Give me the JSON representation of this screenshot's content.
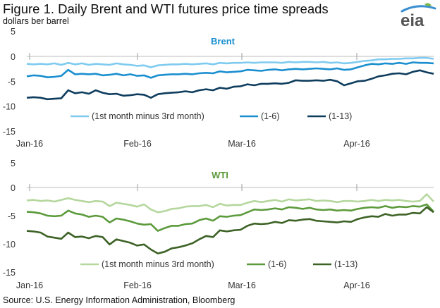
{
  "header": {
    "title": "Figure 1. Daily Brent and WTI futures price time spreads",
    "subtitle": "dollars ber barrel",
    "logo_text": "eia"
  },
  "footer": {
    "source": "Source: U.S. Energy Information Administration, Bloomberg"
  },
  "colors": {
    "brent_light": "#7fcbf0",
    "brent_mid": "#1a8fcf",
    "brent_dark": "#0f3d5e",
    "wti_light": "#b5d79e",
    "wti_mid": "#5c9a3c",
    "wti_dark": "#3d6226",
    "brent_title": "#1a8fcf",
    "wti_title": "#5c9a3c",
    "logo_swoosh": "#3a8fd0",
    "logo_leaf": "#7ab648"
  },
  "chart_data": [
    {
      "type": "line",
      "title": "Brent",
      "ylim": [
        -15,
        5
      ],
      "yticks": [
        -15,
        -10,
        -5,
        0,
        5
      ],
      "xticks": [
        "Jan-16",
        "Feb-16",
        "Mar-16",
        "Apr-16"
      ],
      "x": [
        0,
        2,
        4,
        6,
        8,
        10,
        12,
        14,
        16,
        18,
        20,
        22,
        24,
        26,
        28,
        30,
        32,
        34,
        36,
        38,
        40,
        42,
        44,
        46,
        48,
        50,
        52,
        54,
        56,
        58,
        60,
        62,
        64,
        66,
        68,
        70,
        72,
        74,
        76,
        78,
        80,
        82,
        84,
        86,
        88,
        90,
        92,
        94,
        96,
        98,
        100,
        102,
        104,
        106,
        108,
        110,
        112,
        114,
        116,
        118
      ],
      "grid": false,
      "legend": "bottom",
      "series": [
        {
          "name": "(1st month minus 3rd month)",
          "values": [
            -1.5,
            -1.6,
            -1.5,
            -1.6,
            -1.4,
            -1.7,
            -1.3,
            -1.6,
            -1.4,
            -1.7,
            -1.5,
            -1.6,
            -1.7,
            -1.4,
            -1.6,
            -1.7,
            -1.9,
            -1.8,
            -2.2,
            -1.8,
            -1.7,
            -1.6,
            -1.6,
            -1.5,
            -1.6,
            -1.5,
            -1.4,
            -1.6,
            -1.3,
            -1.4,
            -1.3,
            -1.3,
            -1.2,
            -1.3,
            -1.2,
            -1.2,
            -1.2,
            -1.3,
            -1.1,
            -1.2,
            -1.1,
            -1.1,
            -1.2,
            -1.1,
            -1.3,
            -1.2,
            -1.4,
            -1.3,
            -1.1,
            -0.9,
            -0.8,
            -0.6,
            -0.6,
            -0.5,
            -0.5,
            -0.4,
            -0.4,
            -0.3,
            -0.3,
            -0.5
          ]
        },
        {
          "name": "(1-6)",
          "values": [
            -4.0,
            -3.8,
            -3.9,
            -4.2,
            -4.1,
            -3.9,
            -2.7,
            -3.6,
            -3.5,
            -3.6,
            -3.5,
            -3.8,
            -3.7,
            -3.5,
            -3.8,
            -3.6,
            -3.9,
            -3.8,
            -4.3,
            -3.8,
            -3.7,
            -3.6,
            -3.6,
            -3.5,
            -3.6,
            -3.4,
            -3.3,
            -3.4,
            -3.0,
            -3.2,
            -3.1,
            -3.0,
            -2.7,
            -2.8,
            -2.9,
            -2.7,
            -2.6,
            -2.8,
            -2.6,
            -2.5,
            -2.6,
            -2.5,
            -2.4,
            -2.5,
            -2.6,
            -2.4,
            -2.7,
            -2.6,
            -2.2,
            -1.8,
            -1.5,
            -1.6,
            -1.4,
            -1.5,
            -1.3,
            -1.5,
            -1.2,
            -1.3,
            -1.3,
            -1.4
          ]
        },
        {
          "name": "(1-13)",
          "values": [
            -8.3,
            -8.2,
            -8.3,
            -8.6,
            -8.5,
            -8.4,
            -6.8,
            -7.4,
            -7.2,
            -7.5,
            -6.8,
            -7.3,
            -7.6,
            -7.5,
            -7.9,
            -7.8,
            -7.6,
            -7.7,
            -8.3,
            -7.6,
            -7.4,
            -7.3,
            -7.2,
            -7.0,
            -7.2,
            -6.8,
            -6.6,
            -6.8,
            -6.3,
            -6.5,
            -6.1,
            -6.0,
            -5.6,
            -5.8,
            -5.5,
            -5.5,
            -5.4,
            -5.5,
            -5.3,
            -4.8,
            -4.9,
            -4.9,
            -4.8,
            -4.9,
            -4.7,
            -5.0,
            -5.8,
            -5.4,
            -5.0,
            -4.9,
            -4.5,
            -4.0,
            -3.8,
            -3.5,
            -3.4,
            -3.6,
            -3.1,
            -2.8,
            -3.2,
            -3.5
          ]
        }
      ]
    },
    {
      "type": "line",
      "title": "WTI",
      "ylim": [
        -15,
        5
      ],
      "yticks": [
        -15,
        -10,
        -5,
        0,
        5
      ],
      "xticks": [
        "Jan-16",
        "Feb-16",
        "Mar-16",
        "Apr-16"
      ],
      "x": [
        0,
        2,
        4,
        6,
        8,
        10,
        12,
        14,
        16,
        18,
        20,
        22,
        24,
        26,
        28,
        30,
        32,
        34,
        36,
        38,
        40,
        42,
        44,
        46,
        48,
        50,
        52,
        54,
        56,
        58,
        60,
        62,
        64,
        66,
        68,
        70,
        72,
        74,
        76,
        78,
        80,
        82,
        84,
        86,
        88,
        90,
        92,
        94,
        96,
        98,
        100,
        102,
        104,
        106,
        108,
        110,
        112,
        114,
        116,
        118
      ],
      "grid": false,
      "legend": "bottom",
      "series": [
        {
          "name": "(1st month minus 3rd month)",
          "values": [
            -2.3,
            -2.2,
            -2.4,
            -2.3,
            -2.5,
            -2.2,
            -1.9,
            -2.2,
            -2.4,
            -2.6,
            -2.4,
            -2.5,
            -3.3,
            -2.7,
            -2.9,
            -3.1,
            -3.4,
            -3.0,
            -3.9,
            -4.4,
            -4.2,
            -3.8,
            -3.7,
            -3.4,
            -3.3,
            -3.3,
            -3.1,
            -3.5,
            -2.9,
            -3.2,
            -3.1,
            -3.1,
            -2.7,
            -2.4,
            -2.6,
            -2.4,
            -2.2,
            -2.5,
            -2.1,
            -2.3,
            -2.2,
            -2.1,
            -2.4,
            -2.3,
            -2.4,
            -2.6,
            -2.4,
            -2.4,
            -2.5,
            -2.4,
            -2.2,
            -2.4,
            -2.2,
            -2.3,
            -2.2,
            -2.4,
            -2.5,
            -2.4,
            -1.2,
            -2.5
          ]
        },
        {
          "name": "(1-6)",
          "values": [
            -4.3,
            -4.4,
            -4.6,
            -5.0,
            -5.1,
            -5.0,
            -4.1,
            -4.6,
            -4.8,
            -5.2,
            -5.0,
            -5.2,
            -6.2,
            -5.5,
            -5.7,
            -6.0,
            -6.4,
            -6.6,
            -6.5,
            -7.7,
            -7.2,
            -6.8,
            -6.8,
            -6.5,
            -6.4,
            -5.8,
            -5.5,
            -5.9,
            -5.1,
            -5.2,
            -5.0,
            -4.9,
            -4.4,
            -3.9,
            -4.0,
            -3.9,
            -3.7,
            -3.9,
            -3.5,
            -3.6,
            -3.8,
            -3.6,
            -3.9,
            -4.0,
            -3.9,
            -4.1,
            -4.0,
            -4.1,
            -3.8,
            -3.6,
            -3.5,
            -3.6,
            -3.3,
            -3.6,
            -3.4,
            -3.5,
            -3.3,
            -3.4,
            -3.0,
            -4.3
          ]
        },
        {
          "name": "(1-13)",
          "values": [
            -7.7,
            -7.8,
            -8.0,
            -8.7,
            -8.9,
            -9.1,
            -8.0,
            -8.8,
            -8.7,
            -9.0,
            -8.6,
            -8.8,
            -10.1,
            -9.2,
            -9.5,
            -9.8,
            -10.3,
            -10.1,
            -11.0,
            -11.7,
            -11.4,
            -10.8,
            -10.6,
            -10.3,
            -9.9,
            -9.2,
            -8.6,
            -8.8,
            -7.6,
            -7.8,
            -7.6,
            -7.5,
            -6.8,
            -6.4,
            -6.5,
            -6.4,
            -6.1,
            -6.3,
            -5.8,
            -5.9,
            -5.7,
            -5.6,
            -5.9,
            -6.0,
            -6.1,
            -6.2,
            -6.0,
            -6.1,
            -5.6,
            -5.3,
            -5.1,
            -5.2,
            -4.7,
            -5.0,
            -4.8,
            -4.8,
            -4.5,
            -4.6,
            -3.5,
            -4.4
          ]
        }
      ]
    }
  ]
}
